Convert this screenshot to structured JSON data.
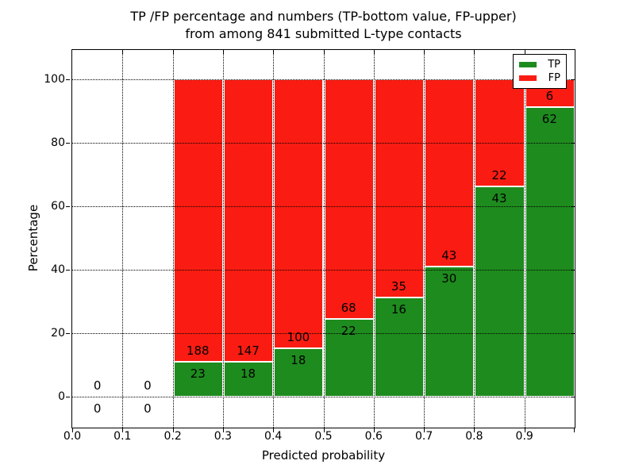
{
  "figure": {
    "title_line1": "TP /FP percentage and numbers (TP-bottom value, FP-upper)",
    "title_line2": "from among 841 submitted L-type contacts",
    "xlabel": "Predicted probability",
    "ylabel": "Percentage"
  },
  "legend": {
    "position": "upper right",
    "items": [
      {
        "label": "TP",
        "color": "#1e8b1e"
      },
      {
        "label": "FP",
        "color": "#fa1c12"
      }
    ]
  },
  "chart_data": {
    "type": "bar",
    "stacked": true,
    "title": "TP /FP percentage and numbers (TP-bottom value, FP-upper) from among 841 submitted L-type contacts",
    "xlabel": "Predicted probability",
    "ylabel": "Percentage",
    "xlim": [
      0.0,
      1.0
    ],
    "ylim": [
      -9.5,
      109.5
    ],
    "xticks": [
      "0.0",
      "0.1",
      "0.2",
      "0.3",
      "0.4",
      "0.5",
      "0.6",
      "0.7",
      "0.8",
      "0.9"
    ],
    "yticks": [
      0,
      20,
      40,
      60,
      80,
      100
    ],
    "grid": true,
    "grid_style": "dotted",
    "legend_position": "upper right",
    "colors": {
      "tp": "#1e8b1e",
      "fp": "#fa1c12"
    },
    "series_note": "Each non-empty bin is a 100%-stacked bar: TP (green, bottom) + FP (red, top). Labels show raw counts: FP count above the TP/FP boundary, TP count below it.",
    "bins": [
      {
        "x0": 0.0,
        "x1": 0.1,
        "tp": 0,
        "fp": 0,
        "tp_pct": 0,
        "fp_pct": 0
      },
      {
        "x0": 0.1,
        "x1": 0.2,
        "tp": 0,
        "fp": 0,
        "tp_pct": 0,
        "fp_pct": 0
      },
      {
        "x0": 0.2,
        "x1": 0.3,
        "tp": 23,
        "fp": 188,
        "tp_pct": 10.9,
        "fp_pct": 89.1
      },
      {
        "x0": 0.3,
        "x1": 0.4,
        "tp": 18,
        "fp": 147,
        "tp_pct": 10.91,
        "fp_pct": 89.09
      },
      {
        "x0": 0.4,
        "x1": 0.5,
        "tp": 18,
        "fp": 100,
        "tp_pct": 15.25,
        "fp_pct": 84.75
      },
      {
        "x0": 0.5,
        "x1": 0.6,
        "tp": 22,
        "fp": 68,
        "tp_pct": 24.44,
        "fp_pct": 75.56
      },
      {
        "x0": 0.6,
        "x1": 0.7,
        "tp": 16,
        "fp": 35,
        "tp_pct": 31.37,
        "fp_pct": 68.63
      },
      {
        "x0": 0.7,
        "x1": 0.8,
        "tp": 30,
        "fp": 43,
        "tp_pct": 41.1,
        "fp_pct": 58.9
      },
      {
        "x0": 0.8,
        "x1": 0.9,
        "tp": 43,
        "fp": 22,
        "tp_pct": 66.15,
        "fp_pct": 33.85
      },
      {
        "x0": 0.9,
        "x1": 1.0,
        "tp": 62,
        "fp": 6,
        "tp_pct": 91.18,
        "fp_pct": 8.82
      }
    ]
  }
}
